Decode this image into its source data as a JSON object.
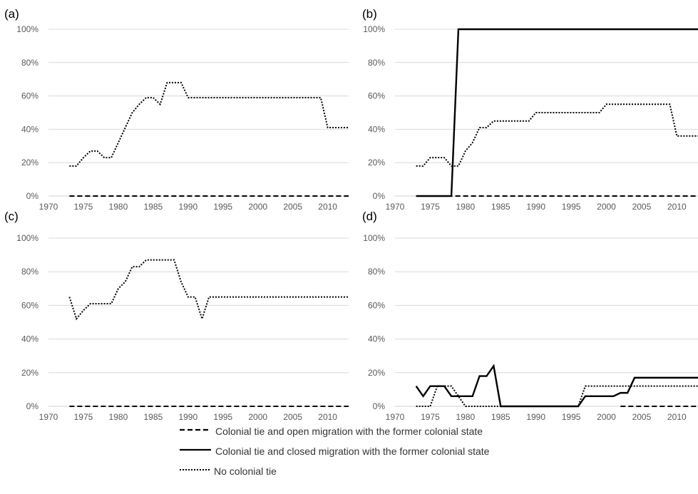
{
  "chart_data": [
    {
      "type": "line",
      "panel_label": "(a)",
      "x": [
        1973,
        1974,
        1975,
        1976,
        1977,
        1978,
        1979,
        1980,
        1981,
        1982,
        1983,
        1984,
        1985,
        1986,
        1987,
        1988,
        1989,
        1990,
        1991,
        1992,
        1993,
        1994,
        1995,
        1996,
        1997,
        1998,
        1999,
        2000,
        2001,
        2002,
        2003,
        2004,
        2005,
        2006,
        2007,
        2008,
        2009,
        2010,
        2011,
        2012,
        2013
      ],
      "xlim": [
        1970,
        2013
      ],
      "xticks": [
        "1970",
        "1975",
        "1980",
        "1985",
        "1990",
        "1995",
        "2000",
        "2005",
        "2010"
      ],
      "ylim": [
        0,
        100
      ],
      "yticks": [
        "0%",
        "20%",
        "40%",
        "60%",
        "80%",
        "100%"
      ],
      "series": [
        {
          "name": "Colonial tie and open migration with the former colonial state",
          "style": "dashed",
          "x_start": 1973,
          "x_end": 2013,
          "values": [
            [
              1973,
              0
            ],
            [
              2013,
              0
            ]
          ]
        },
        {
          "name": "No colonial tie",
          "style": "dotted",
          "values": [
            [
              1973,
              18
            ],
            [
              1974,
              18
            ],
            [
              1975,
              23
            ],
            [
              1976,
              27
            ],
            [
              1977,
              27
            ],
            [
              1978,
              23
            ],
            [
              1979,
              23
            ],
            [
              1980,
              32
            ],
            [
              1981,
              41
            ],
            [
              1982,
              50
            ],
            [
              1983,
              55
            ],
            [
              1984,
              59
            ],
            [
              1985,
              59
            ],
            [
              1986,
              55
            ],
            [
              1987,
              68
            ],
            [
              1988,
              68
            ],
            [
              1989,
              68
            ],
            [
              1990,
              59
            ],
            [
              1991,
              59
            ],
            [
              2008,
              59
            ],
            [
              2009,
              59
            ],
            [
              2010,
              41
            ],
            [
              2013,
              41
            ]
          ]
        }
      ]
    },
    {
      "type": "line",
      "panel_label": "(b)",
      "xlim": [
        1970,
        2013
      ],
      "xticks": [
        "1970",
        "1975",
        "1980",
        "1985",
        "1990",
        "1995",
        "2000",
        "2005",
        "2010"
      ],
      "ylim": [
        0,
        100
      ],
      "yticks": [
        "0%",
        "20%",
        "40%",
        "60%",
        "80%",
        "100%"
      ],
      "series": [
        {
          "name": "Colonial tie and open migration with the former colonial state",
          "style": "dashed",
          "values": [
            [
              1973,
              0
            ],
            [
              2013,
              0
            ]
          ]
        },
        {
          "name": "Colonial tie and closed migration with the former colonial state",
          "style": "solid",
          "values": [
            [
              1973,
              0
            ],
            [
              1978,
              0
            ],
            [
              1979,
              100
            ],
            [
              2013,
              100
            ]
          ]
        },
        {
          "name": "No colonial tie",
          "style": "dotted",
          "values": [
            [
              1973,
              18
            ],
            [
              1974,
              18
            ],
            [
              1975,
              23
            ],
            [
              1976,
              23
            ],
            [
              1977,
              23
            ],
            [
              1978,
              18
            ],
            [
              1979,
              18
            ],
            [
              1980,
              27
            ],
            [
              1981,
              32
            ],
            [
              1982,
              41
            ],
            [
              1983,
              41
            ],
            [
              1984,
              45
            ],
            [
              1985,
              45
            ],
            [
              1988,
              45
            ],
            [
              1989,
              45
            ],
            [
              1990,
              50
            ],
            [
              1998,
              50
            ],
            [
              1999,
              50
            ],
            [
              2000,
              55
            ],
            [
              2008,
              55
            ],
            [
              2009,
              55
            ],
            [
              2010,
              36
            ],
            [
              2013,
              36
            ]
          ]
        }
      ]
    },
    {
      "type": "line",
      "panel_label": "(c)",
      "xlim": [
        1970,
        2013
      ],
      "xticks": [
        "1970",
        "1975",
        "1980",
        "1985",
        "1990",
        "1995",
        "2000",
        "2005",
        "2010"
      ],
      "ylim": [
        0,
        100
      ],
      "yticks": [
        "0%",
        "20%",
        "40%",
        "60%",
        "80%",
        "100%"
      ],
      "series": [
        {
          "name": "Colonial tie and open migration with the former colonial state",
          "style": "dashed",
          "values": [
            [
              1973,
              0
            ],
            [
              2013,
              0
            ]
          ]
        },
        {
          "name": "No colonial tie",
          "style": "dotted",
          "values": [
            [
              1973,
              65
            ],
            [
              1974,
              52
            ],
            [
              1975,
              57
            ],
            [
              1976,
              61
            ],
            [
              1977,
              61
            ],
            [
              1978,
              61
            ],
            [
              1979,
              61
            ],
            [
              1980,
              70
            ],
            [
              1981,
              74
            ],
            [
              1982,
              83
            ],
            [
              1983,
              83
            ],
            [
              1984,
              87
            ],
            [
              1985,
              87
            ],
            [
              1986,
              87
            ],
            [
              1987,
              87
            ],
            [
              1988,
              87
            ],
            [
              1989,
              74
            ],
            [
              1990,
              65
            ],
            [
              1991,
              65
            ],
            [
              1992,
              52
            ],
            [
              1993,
              65
            ],
            [
              2013,
              65
            ]
          ]
        }
      ]
    },
    {
      "type": "line",
      "panel_label": "(d)",
      "xlim": [
        1970,
        2013
      ],
      "xticks": [
        "1970",
        "1975",
        "1980",
        "1985",
        "1990",
        "1995",
        "2000",
        "2005",
        "2010"
      ],
      "ylim": [
        0,
        100
      ],
      "yticks": [
        "0%",
        "20%",
        "40%",
        "60%",
        "80%",
        "100%"
      ],
      "series": [
        {
          "name": "Colonial tie and open migration with the former colonial state",
          "style": "dashed",
          "values": [
            [
              2002,
              0
            ],
            [
              2013,
              0
            ]
          ]
        },
        {
          "name": "Colonial tie and closed migration with the former colonial state",
          "style": "solid",
          "values": [
            [
              1973,
              12
            ],
            [
              1974,
              6
            ],
            [
              1975,
              12
            ],
            [
              1976,
              12
            ],
            [
              1977,
              12
            ],
            [
              1978,
              6
            ],
            [
              1979,
              6
            ],
            [
              1980,
              6
            ],
            [
              1981,
              6
            ],
            [
              1982,
              18
            ],
            [
              1983,
              18
            ],
            [
              1984,
              24
            ],
            [
              1985,
              0
            ],
            [
              1996,
              0
            ],
            [
              1997,
              6
            ],
            [
              2001,
              6
            ],
            [
              2002,
              8
            ],
            [
              2003,
              8
            ],
            [
              2004,
              17
            ],
            [
              2013,
              17
            ]
          ]
        },
        {
          "name": "No colonial tie",
          "style": "dotted",
          "values": [
            [
              1973,
              0
            ],
            [
              1975,
              0
            ],
            [
              1976,
              12
            ],
            [
              1978,
              12
            ],
            [
              1979,
              6
            ],
            [
              1980,
              0
            ],
            [
              1996,
              0
            ],
            [
              1997,
              12
            ],
            [
              2013,
              12
            ]
          ]
        }
      ]
    }
  ],
  "legend": {
    "open": "Colonial tie and open migration with the former colonial state",
    "closed": "Colonial tie and closed migration with the former colonial state",
    "none": "No colonial tie"
  },
  "colors": {
    "series": "#000000",
    "grid": "#d9d9d9",
    "tick_text": "#595959",
    "panel_label": "#000000"
  }
}
